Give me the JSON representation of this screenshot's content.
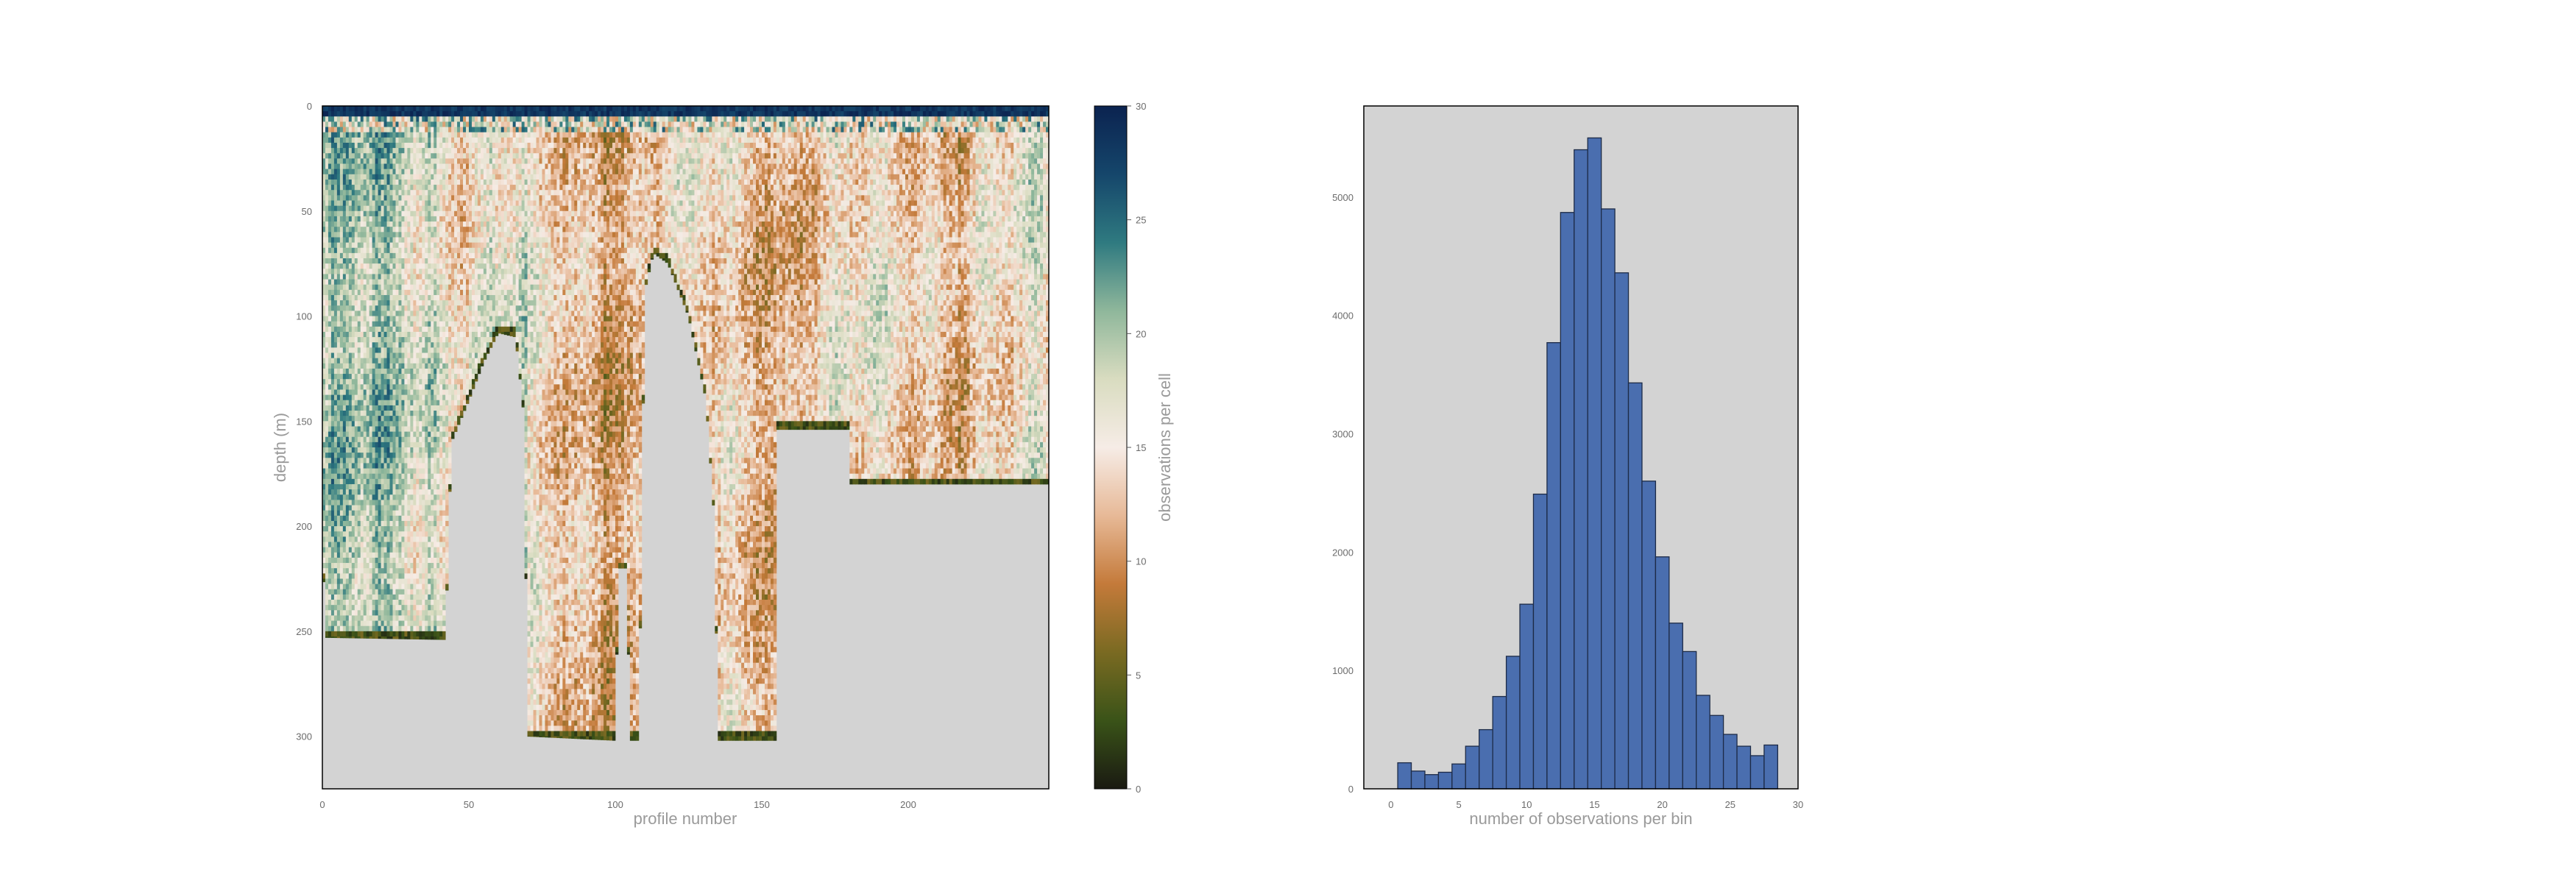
{
  "chart_data": [
    {
      "type": "heatmap",
      "title": "",
      "xlabel": "profile number",
      "ylabel": "depth (m)",
      "colorbar_label": "observations per cell",
      "xlim": [
        0,
        248
      ],
      "ylim": [
        325,
        0
      ],
      "x_ticks": [
        0,
        50,
        100,
        150,
        200
      ],
      "y_ticks": [
        0,
        50,
        100,
        150,
        200,
        250,
        300
      ],
      "colorbar_range": [
        0,
        30
      ],
      "colorbar_ticks": [
        0,
        5,
        10,
        15,
        20,
        25,
        30
      ],
      "background_color": "#d3d3d3",
      "colormap": [
        "#1a1a12",
        "#3a5318",
        "#7a6a22",
        "#c47a3a",
        "#e7b997",
        "#f6ece6",
        "#d9dcc0",
        "#8fb79b",
        "#2f7a80",
        "#15466b",
        "#0b2350"
      ],
      "bottom_depth_profile": [
        {
          "x": 0,
          "depth": 200
        },
        {
          "x": 1,
          "depth": 253
        },
        {
          "x": 42,
          "depth": 254
        },
        {
          "x": 44,
          "depth": 160
        },
        {
          "x": 50,
          "depth": 140
        },
        {
          "x": 55,
          "depth": 122
        },
        {
          "x": 60,
          "depth": 108
        },
        {
          "x": 66,
          "depth": 110
        },
        {
          "x": 69,
          "depth": 150
        },
        {
          "x": 70,
          "depth": 300
        },
        {
          "x": 100,
          "depth": 302
        },
        {
          "x": 101,
          "depth": 220
        },
        {
          "x": 104,
          "depth": 220
        },
        {
          "x": 105,
          "depth": 302
        },
        {
          "x": 108,
          "depth": 302
        },
        {
          "x": 110,
          "depth": 88
        },
        {
          "x": 113,
          "depth": 70
        },
        {
          "x": 118,
          "depth": 75
        },
        {
          "x": 125,
          "depth": 100
        },
        {
          "x": 131,
          "depth": 140
        },
        {
          "x": 134,
          "depth": 200
        },
        {
          "x": 135,
          "depth": 302
        },
        {
          "x": 155,
          "depth": 302
        },
        {
          "x": 155.5,
          "depth": 154
        },
        {
          "x": 180,
          "depth": 154
        },
        {
          "x": 180.5,
          "depth": 180
        },
        {
          "x": 248,
          "depth": 180
        }
      ]
    },
    {
      "type": "bar",
      "title": "",
      "xlabel": "number of observations per bin",
      "ylabel": "",
      "xlim": [
        -2,
        30
      ],
      "ylim": [
        0,
        5770
      ],
      "x_ticks": [
        0,
        5,
        10,
        15,
        20,
        25,
        30
      ],
      "y_ticks": [
        0,
        1000,
        2000,
        3000,
        4000,
        5000
      ],
      "bar_color": "#4a6eaf",
      "edge_color": "#1d2b47",
      "background_color": "#d3d3d3",
      "bins": [
        1,
        2,
        3,
        4,
        5,
        6,
        7,
        8,
        9,
        10,
        11,
        12,
        13,
        14,
        15,
        16,
        17,
        18,
        19,
        20,
        21,
        22,
        23,
        24,
        25,
        26,
        27,
        28,
        29
      ],
      "values": [
        220,
        150,
        120,
        140,
        210,
        360,
        500,
        780,
        1120,
        1560,
        2490,
        3770,
        4870,
        5400,
        5500,
        4900,
        4360,
        3430,
        2600,
        1960,
        1400,
        1160,
        790,
        620,
        460,
        360,
        280,
        370,
        null
      ]
    }
  ]
}
